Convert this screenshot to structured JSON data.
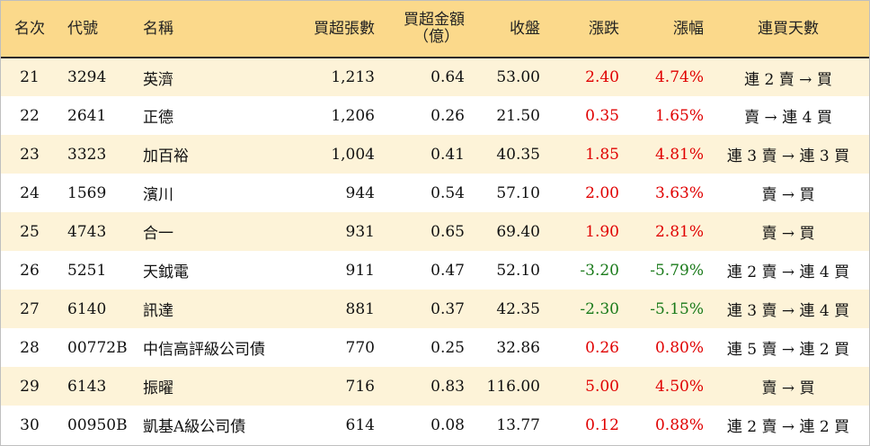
{
  "header": {
    "rank": "名次",
    "code": "代號",
    "name": "名稱",
    "net_buy_lots": "買超張數",
    "net_buy_amount_line1": "買超金額",
    "net_buy_amount_line2": "（億）",
    "close": "收盤",
    "change": "漲跌",
    "pct_change": "漲幅",
    "streak": "連買天數"
  },
  "colors": {
    "header_bg": "#fbd98b",
    "stripe_bg": "#fdf3d8",
    "up": "#e00000",
    "down": "#1a7a1a"
  },
  "rows": [
    {
      "rank": "21",
      "code": "3294",
      "name": "英濟",
      "lots": "1,213",
      "amount": "0.64",
      "close": "53.00",
      "change": "2.40",
      "pct": "4.74%",
      "streak": "連 2 賣 → 買",
      "dir": "up"
    },
    {
      "rank": "22",
      "code": "2641",
      "name": "正德",
      "lots": "1,206",
      "amount": "0.26",
      "close": "21.50",
      "change": "0.35",
      "pct": "1.65%",
      "streak": "賣 → 連 4 買",
      "dir": "up"
    },
    {
      "rank": "23",
      "code": "3323",
      "name": "加百裕",
      "lots": "1,004",
      "amount": "0.41",
      "close": "40.35",
      "change": "1.85",
      "pct": "4.81%",
      "streak": "連 3 賣 → 連 3 買",
      "dir": "up"
    },
    {
      "rank": "24",
      "code": "1569",
      "name": "濱川",
      "lots": "944",
      "amount": "0.54",
      "close": "57.10",
      "change": "2.00",
      "pct": "3.63%",
      "streak": "賣 → 買",
      "dir": "up"
    },
    {
      "rank": "25",
      "code": "4743",
      "name": "合一",
      "lots": "931",
      "amount": "0.65",
      "close": "69.40",
      "change": "1.90",
      "pct": "2.81%",
      "streak": "賣 → 買",
      "dir": "up"
    },
    {
      "rank": "26",
      "code": "5251",
      "name": "天鉞電",
      "lots": "911",
      "amount": "0.47",
      "close": "52.10",
      "change": "-3.20",
      "pct": "-5.79%",
      "streak": "連 2 賣 → 連 4 買",
      "dir": "down"
    },
    {
      "rank": "27",
      "code": "6140",
      "name": "訊達",
      "lots": "881",
      "amount": "0.37",
      "close": "42.35",
      "change": "-2.30",
      "pct": "-5.15%",
      "streak": "連 3 賣 → 連 4 買",
      "dir": "down"
    },
    {
      "rank": "28",
      "code": "00772B",
      "name": "中信高評級公司債",
      "lots": "770",
      "amount": "0.25",
      "close": "32.86",
      "change": "0.26",
      "pct": "0.80%",
      "streak": "連 5 賣 → 連 2 買",
      "dir": "up"
    },
    {
      "rank": "29",
      "code": "6143",
      "name": "振曜",
      "lots": "716",
      "amount": "0.83",
      "close": "116.00",
      "change": "5.00",
      "pct": "4.50%",
      "streak": "賣 → 買",
      "dir": "up"
    },
    {
      "rank": "30",
      "code": "00950B",
      "name": "凱基A級公司債",
      "lots": "614",
      "amount": "0.08",
      "close": "13.77",
      "change": "0.12",
      "pct": "0.88%",
      "streak": "連 2 賣 → 連 2 買",
      "dir": "up"
    }
  ]
}
